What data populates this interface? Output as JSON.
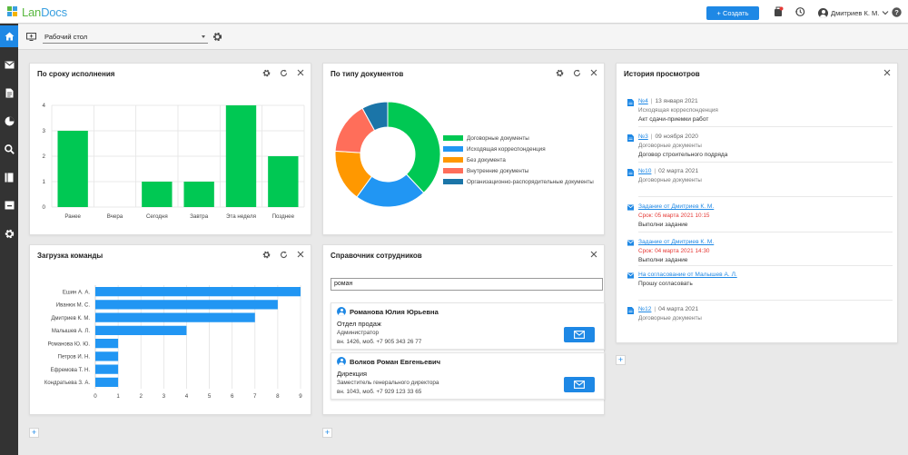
{
  "app": {
    "logo_text_a": "Lan",
    "logo_text_b": "Docs"
  },
  "topbar": {
    "create_label": "+ Создать",
    "user_name": "Дмитриев К. М."
  },
  "colors": {
    "accent": "#1e88e5",
    "green": "#00c853",
    "blue": "#2196f3",
    "orange": "#ff9800",
    "red": "#ff6e5a",
    "teal": "#1b75a8"
  },
  "rail": {
    "items": [
      "home-icon",
      "mail-icon",
      "document-icon",
      "pie-chart-icon",
      "search-icon",
      "book-icon",
      "archive-icon",
      "settings-icon"
    ]
  },
  "desktop": {
    "selected": "Рабочий стол"
  },
  "widgets": {
    "deadline": {
      "title": "По сроку исполнения"
    },
    "doc_type": {
      "title": "По типу документов"
    },
    "team_load": {
      "title": "Загрузка команды"
    },
    "directory": {
      "title": "Справочник сотрудников",
      "search_value": "роман"
    },
    "history": {
      "title": "История просмотров"
    }
  },
  "chart_data": [
    {
      "id": "deadline",
      "type": "bar",
      "categories": [
        "Ранее",
        "Вчера",
        "Сегодня",
        "Завтра",
        "Эта неделя",
        "Позднее"
      ],
      "values": [
        3,
        0,
        1,
        1,
        4,
        2
      ],
      "ylim": [
        0,
        4
      ],
      "yticks": [
        "0",
        "1",
        "2",
        "3",
        "4"
      ],
      "grid": true,
      "color": "#00c853"
    },
    {
      "id": "doc_type",
      "type": "pie",
      "donut": true,
      "labels": [
        "Договорные документы",
        "Исходящая корреспонденция",
        "Без документа",
        "Внутренние документы",
        "Организационно-распорядительные документы"
      ],
      "values": [
        38,
        22,
        16,
        16,
        8
      ],
      "colors": [
        "#00c853",
        "#2196f3",
        "#ff9800",
        "#ff6e5a",
        "#1b75a8"
      ],
      "legend": "right"
    },
    {
      "id": "team_load",
      "type": "bar",
      "orientation": "horizontal",
      "categories": [
        "Ешин А. А.",
        "Иванюк М. С.",
        "Дмитриев К. М.",
        "Малышев А. Л.",
        "Романова Ю. Ю.",
        "Петров И. Н.",
        "Ефремова Т. Н.",
        "Кондратьева З. А."
      ],
      "values": [
        9,
        8,
        7,
        4,
        1,
        1,
        1,
        1
      ],
      "xlim": [
        0,
        9
      ],
      "xticks": [
        "0",
        "1",
        "2",
        "3",
        "4",
        "5",
        "6",
        "7",
        "8",
        "9"
      ],
      "grid": true,
      "color": "#2196f3"
    }
  ],
  "employees": [
    {
      "name": "Романова Юлия Юрьевна",
      "dept": "Отдел продаж",
      "role": "Администратор",
      "phone": "вн. 1426, моб. +7 905 343 26 77"
    },
    {
      "name": "Волков Роман Евгеньевич",
      "dept": "Дирекция",
      "role": "Заместитель генерального директора",
      "phone": "вн. 1043, моб. +7 929 123 33 65"
    }
  ],
  "history": [
    {
      "kind": "document",
      "link": "№4",
      "date": "13 января 2021",
      "line2": "Исходящая корреспонденция",
      "line3": "Акт сдачи-приемки работ"
    },
    {
      "kind": "document",
      "link": "№3",
      "date": "09 ноября 2020",
      "line2": "Договорные документы",
      "line3": "Договор строительного подряда"
    },
    {
      "kind": "document",
      "link": "№10",
      "date": "02 марта 2021",
      "line2": "Договорные документы",
      "line3": ""
    },
    {
      "kind": "task",
      "link": "Задание от Дмитриев К. М.",
      "date": "",
      "line2": "Срок: 05 марта 2021 10:15",
      "line3": "Выполни задание"
    },
    {
      "kind": "task",
      "link": "Задание от Дмитриев К. М.",
      "date": "",
      "line2": "Срок: 04 марта 2021 14:30",
      "line3": "Выполни задание"
    },
    {
      "kind": "task",
      "link": "На согласование от Малышев А. Л.",
      "date": "",
      "line2": "",
      "line3": "Прошу согласовать"
    },
    {
      "kind": "document",
      "link": "№12",
      "date": "04 марта 2021",
      "line2": "Договорные документы",
      "line3": ""
    }
  ]
}
